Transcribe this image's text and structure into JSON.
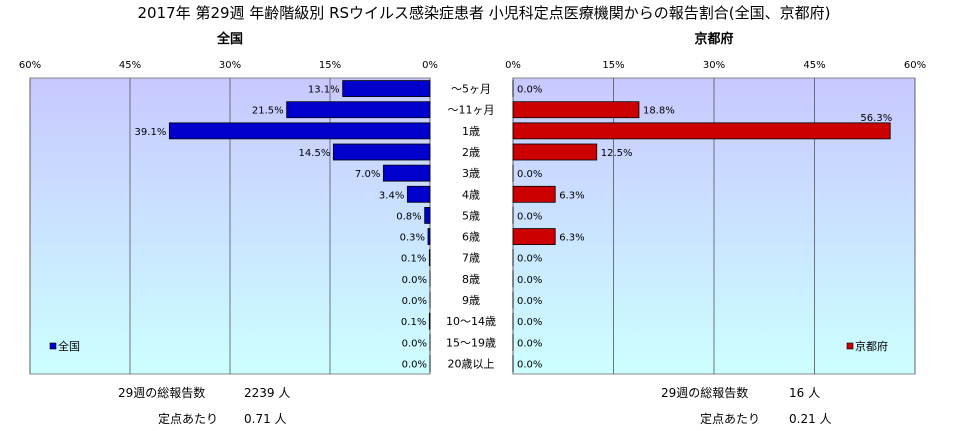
{
  "title": "2017年 第29週 年齢階級別 RSウイルス感染症患者 小児科定点医療機関からの報告割合(全国、京都府)",
  "left_panel": {
    "heading": "全国",
    "legend": "全国",
    "color": "#0000CC"
  },
  "right_panel": {
    "heading": "京都府",
    "legend": "京都府",
    "color": "#CC0000"
  },
  "plot_background": "#CCFFFF",
  "plot_gradient_top": "#C8C8FF",
  "chart_data": {
    "type": "bar",
    "categories": [
      "～5ヶ月",
      "～11ヶ月",
      "1歳",
      "2歳",
      "3歳",
      "4歳",
      "5歳",
      "6歳",
      "7歳",
      "8歳",
      "9歳",
      "10～14歳",
      "15～19歳",
      "20歳以上"
    ],
    "series": [
      {
        "name": "全国",
        "values": [
          13.1,
          21.5,
          39.1,
          14.5,
          7.0,
          3.4,
          0.8,
          0.3,
          0.1,
          0.0,
          0.0,
          0.1,
          0.0,
          0.0
        ]
      },
      {
        "name": "京都府",
        "values": [
          0.0,
          18.8,
          56.3,
          12.5,
          0.0,
          6.3,
          0.0,
          6.3,
          0.0,
          0.0,
          0.0,
          0.0,
          0.0,
          0.0
        ]
      }
    ],
    "xlim": [
      0,
      60
    ],
    "ticks": [
      "60%",
      "45%",
      "30%",
      "15%",
      "0%",
      "0%",
      "15%",
      "30%",
      "45%",
      "60%"
    ],
    "legend_position": "bottom-left / bottom-right",
    "grid": true
  },
  "footer": {
    "left_total_label": "29週の総報告数",
    "left_total_value": "2239 人",
    "left_per_label": "定点あたり",
    "left_per_value": "0.71 人",
    "right_total_label": "29週の総報告数",
    "right_total_value": "16 人",
    "right_per_label": "定点あたり",
    "right_per_value": "0.21 人"
  }
}
